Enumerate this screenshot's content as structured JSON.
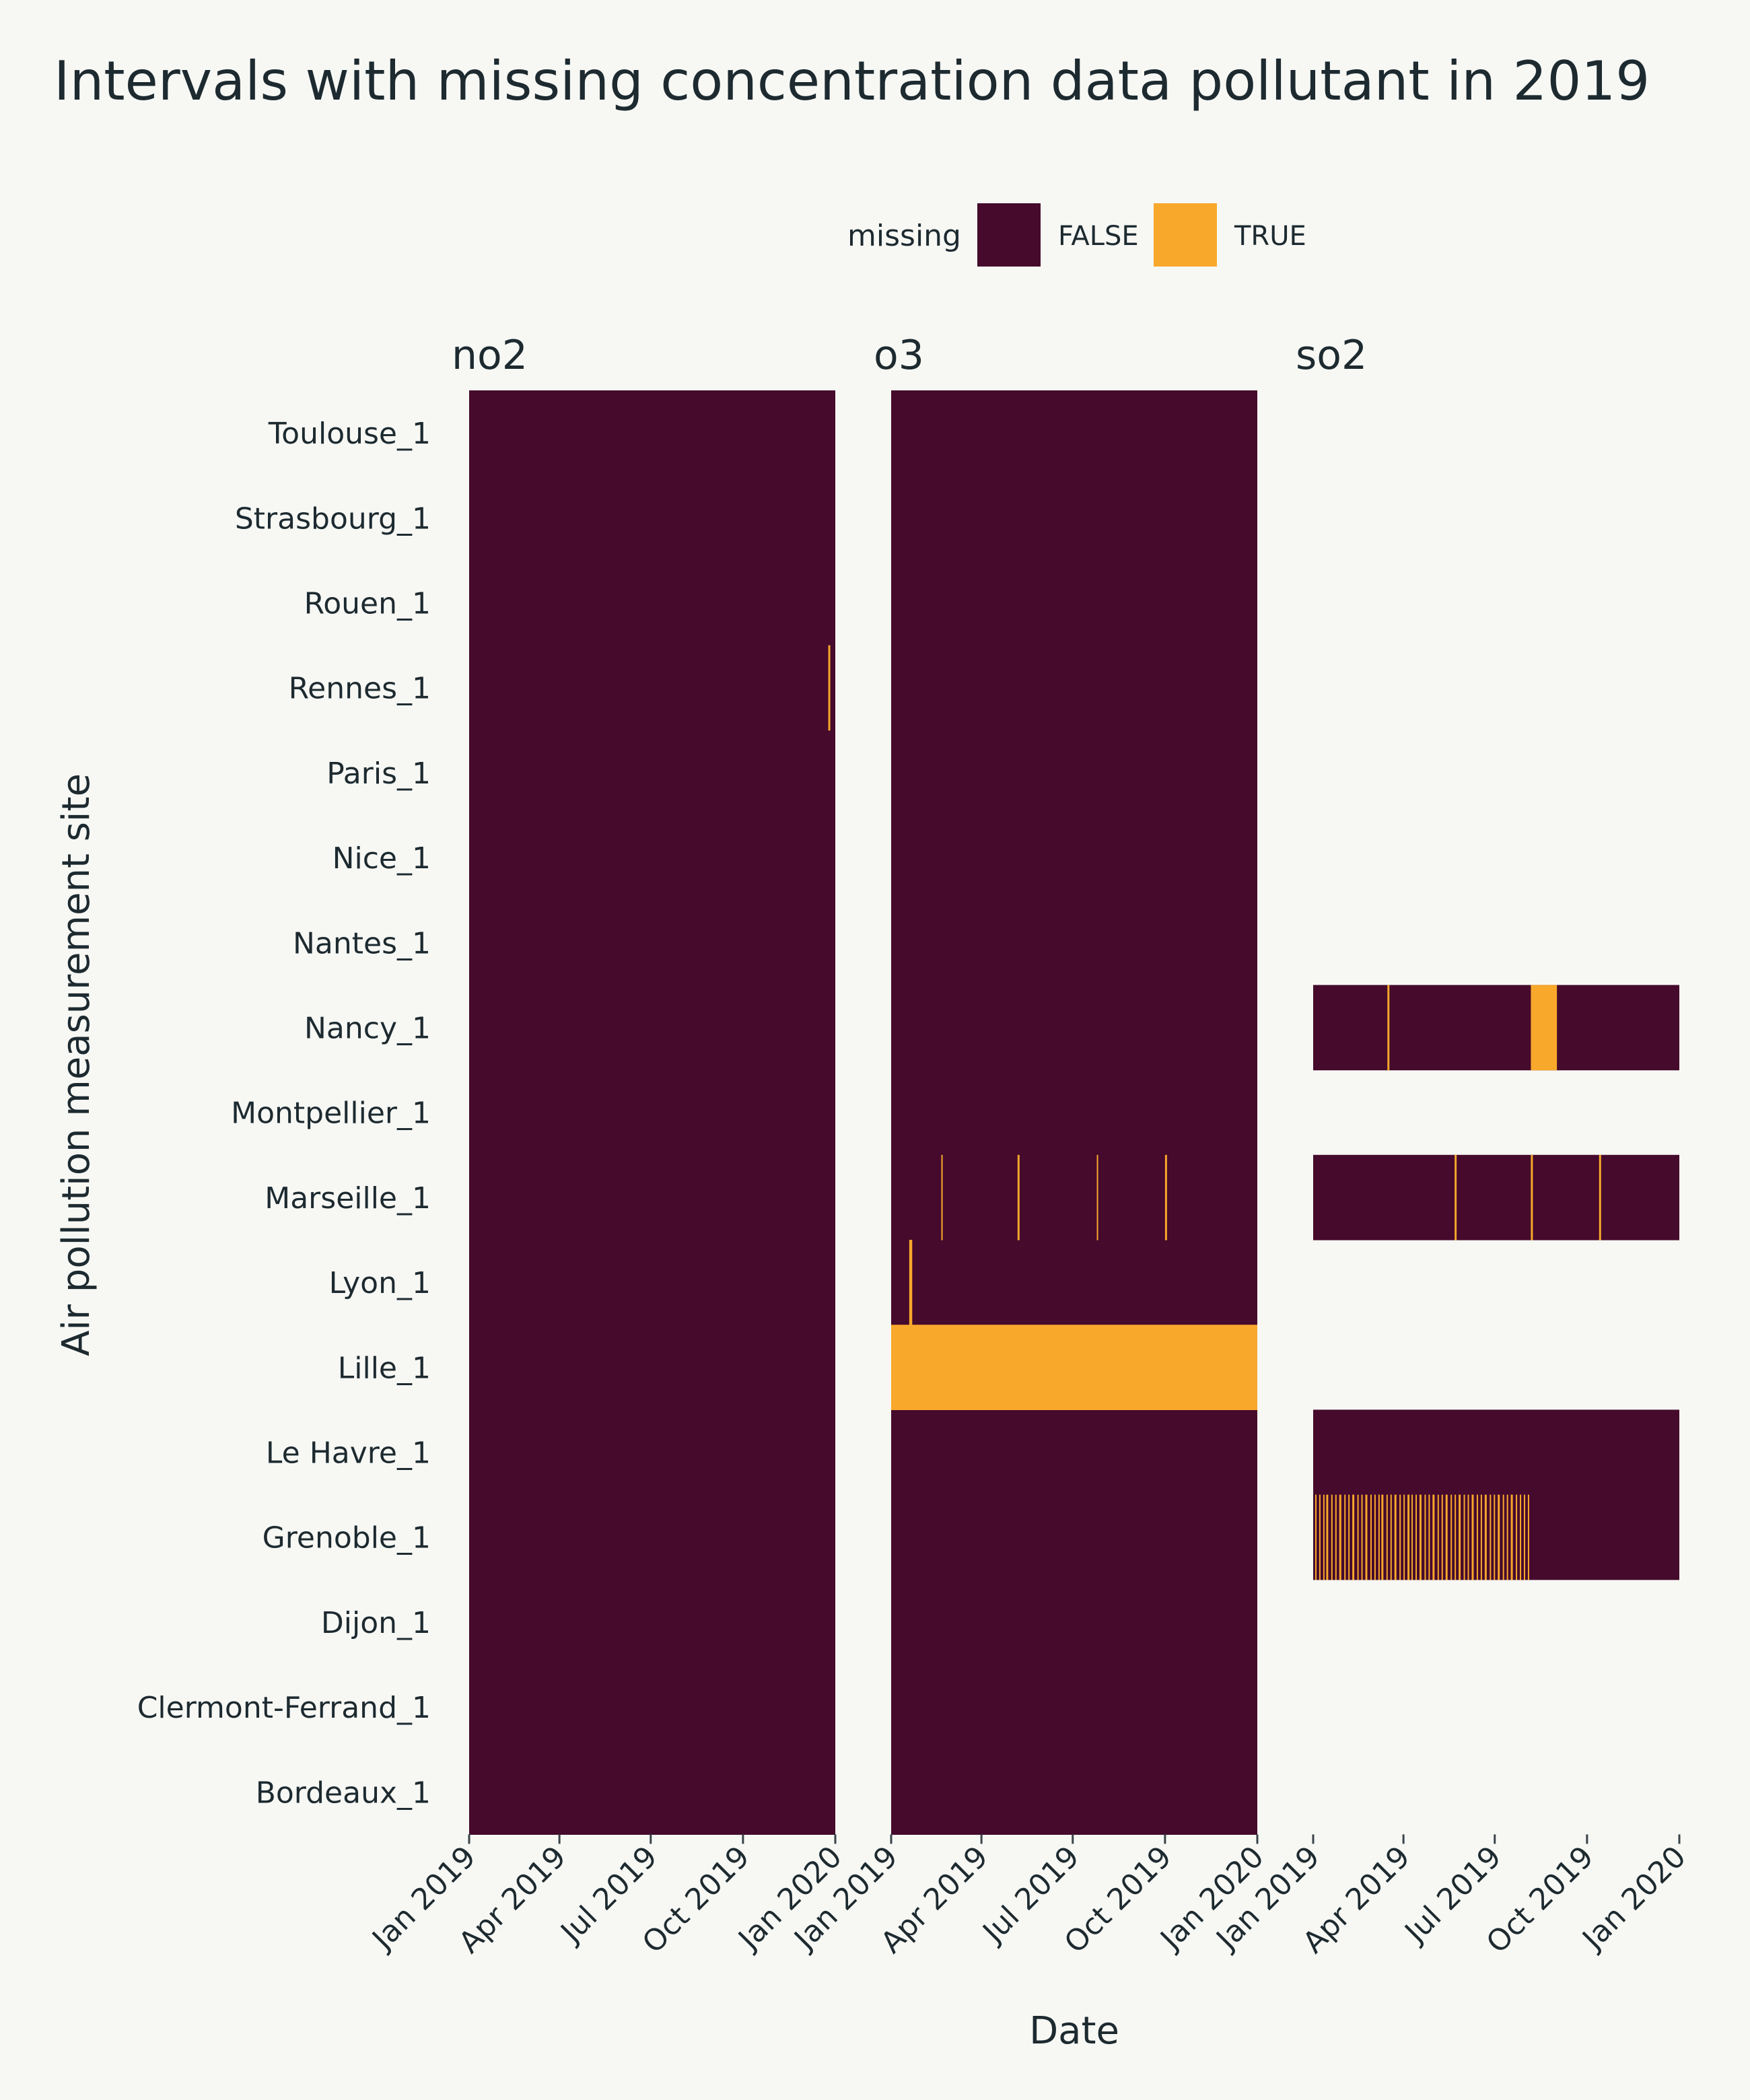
{
  "chart_data": {
    "type": "heatmap",
    "title": "Intervals with missing concentration data pollutant in 2019",
    "xlabel": "Date",
    "ylabel": "Air pollution measurement site",
    "legend": {
      "title": "missing",
      "position": "top",
      "entries": [
        {
          "label": "FALSE",
          "color": "#450a2c"
        },
        {
          "label": "TRUE",
          "color": "#f8a82b"
        }
      ]
    },
    "xlim": [
      "2019-01-01",
      "2020-01-01"
    ],
    "x_ticks": [
      "Jan 2019",
      "Apr 2019",
      "Jul 2019",
      "Oct 2019",
      "Jan 2020"
    ],
    "sites": [
      "Toulouse_1",
      "Strasbourg_1",
      "Rouen_1",
      "Rennes_1",
      "Paris_1",
      "Nice_1",
      "Nantes_1",
      "Nancy_1",
      "Montpellier_1",
      "Marseille_1",
      "Lyon_1",
      "Lille_1",
      "Le Havre_1",
      "Grenoble_1",
      "Dijon_1",
      "Clermont-Ferrand_1",
      "Bordeaux_1"
    ],
    "facets": [
      {
        "name": "no2",
        "sites_with_data": [
          "Toulouse_1",
          "Strasbourg_1",
          "Rouen_1",
          "Rennes_1",
          "Paris_1",
          "Nice_1",
          "Nantes_1",
          "Nancy_1",
          "Montpellier_1",
          "Marseille_1",
          "Lyon_1",
          "Lille_1",
          "Le Havre_1",
          "Grenoble_1",
          "Dijon_1",
          "Clermont-Ferrand_1",
          "Bordeaux_1"
        ],
        "missing_intervals": [
          {
            "site": "Rennes_1",
            "start": "2019-12-25",
            "end": "2019-12-27"
          }
        ]
      },
      {
        "name": "o3",
        "sites_with_data": [
          "Toulouse_1",
          "Strasbourg_1",
          "Rouen_1",
          "Rennes_1",
          "Paris_1",
          "Nice_1",
          "Nantes_1",
          "Nancy_1",
          "Montpellier_1",
          "Marseille_1",
          "Lyon_1",
          "Lille_1",
          "Le Havre_1",
          "Grenoble_1",
          "Dijon_1",
          "Clermont-Ferrand_1",
          "Bordeaux_1"
        ],
        "missing_intervals": [
          {
            "site": "Marseille_1",
            "start": "2019-02-20",
            "end": "2019-02-21"
          },
          {
            "site": "Marseille_1",
            "start": "2019-05-07",
            "end": "2019-05-09"
          },
          {
            "site": "Marseille_1",
            "start": "2019-07-25",
            "end": "2019-07-26"
          },
          {
            "site": "Marseille_1",
            "start": "2019-10-01",
            "end": "2019-10-03"
          },
          {
            "site": "Lyon_1",
            "start": "2019-01-19",
            "end": "2019-01-22"
          },
          {
            "site": "Lille_1",
            "start": "2019-01-01",
            "end": "2020-01-01"
          }
        ]
      },
      {
        "name": "so2",
        "sites_with_data": [
          "Nancy_1",
          "Marseille_1",
          "Le Havre_1",
          "Grenoble_1"
        ],
        "missing_intervals": [
          {
            "site": "Nancy_1",
            "start": "2019-03-16",
            "end": "2019-03-18"
          },
          {
            "site": "Nancy_1",
            "start": "2019-08-06",
            "end": "2019-09-01"
          },
          {
            "site": "Marseille_1",
            "start": "2019-05-22",
            "end": "2019-05-24"
          },
          {
            "site": "Marseille_1",
            "start": "2019-08-06",
            "end": "2019-08-08"
          },
          {
            "site": "Marseille_1",
            "start": "2019-10-13",
            "end": "2019-10-15"
          },
          {
            "site": "Grenoble_1",
            "start": "2019-01-03",
            "end": "2019-01-04"
          },
          {
            "site": "Grenoble_1",
            "start": "2019-01-07",
            "end": "2019-01-08"
          },
          {
            "site": "Grenoble_1",
            "start": "2019-01-11",
            "end": "2019-01-12"
          },
          {
            "site": "Grenoble_1",
            "start": "2019-01-14",
            "end": "2019-01-16"
          },
          {
            "site": "Grenoble_1",
            "start": "2019-01-19",
            "end": "2019-01-20"
          },
          {
            "site": "Grenoble_1",
            "start": "2019-01-23",
            "end": "2019-01-24"
          },
          {
            "site": "Grenoble_1",
            "start": "2019-01-27",
            "end": "2019-01-29"
          },
          {
            "site": "Grenoble_1",
            "start": "2019-02-01",
            "end": "2019-02-02"
          },
          {
            "site": "Grenoble_1",
            "start": "2019-02-05",
            "end": "2019-02-06"
          },
          {
            "site": "Grenoble_1",
            "start": "2019-02-09",
            "end": "2019-02-11"
          },
          {
            "site": "Grenoble_1",
            "start": "2019-02-14",
            "end": "2019-02-15"
          },
          {
            "site": "Grenoble_1",
            "start": "2019-02-18",
            "end": "2019-02-19"
          },
          {
            "site": "Grenoble_1",
            "start": "2019-02-22",
            "end": "2019-02-24"
          },
          {
            "site": "Grenoble_1",
            "start": "2019-02-27",
            "end": "2019-02-28"
          },
          {
            "site": "Grenoble_1",
            "start": "2019-03-03",
            "end": "2019-03-04"
          },
          {
            "site": "Grenoble_1",
            "start": "2019-03-07",
            "end": "2019-03-08"
          },
          {
            "site": "Grenoble_1",
            "start": "2019-03-10",
            "end": "2019-03-12"
          },
          {
            "site": "Grenoble_1",
            "start": "2019-03-15",
            "end": "2019-03-16"
          },
          {
            "site": "Grenoble_1",
            "start": "2019-03-19",
            "end": "2019-03-20"
          },
          {
            "site": "Grenoble_1",
            "start": "2019-03-23",
            "end": "2019-03-25"
          },
          {
            "site": "Grenoble_1",
            "start": "2019-03-28",
            "end": "2019-03-29"
          },
          {
            "site": "Grenoble_1",
            "start": "2019-04-01",
            "end": "2019-04-02"
          },
          {
            "site": "Grenoble_1",
            "start": "2019-04-05",
            "end": "2019-04-07"
          },
          {
            "site": "Grenoble_1",
            "start": "2019-04-09",
            "end": "2019-04-10"
          },
          {
            "site": "Grenoble_1",
            "start": "2019-04-13",
            "end": "2019-04-14"
          },
          {
            "site": "Grenoble_1",
            "start": "2019-04-17",
            "end": "2019-04-19"
          },
          {
            "site": "Grenoble_1",
            "start": "2019-04-22",
            "end": "2019-04-23"
          },
          {
            "site": "Grenoble_1",
            "start": "2019-04-26",
            "end": "2019-04-27"
          },
          {
            "site": "Grenoble_1",
            "start": "2019-04-30",
            "end": "2019-05-02"
          },
          {
            "site": "Grenoble_1",
            "start": "2019-05-05",
            "end": "2019-05-06"
          },
          {
            "site": "Grenoble_1",
            "start": "2019-05-09",
            "end": "2019-05-10"
          },
          {
            "site": "Grenoble_1",
            "start": "2019-05-13",
            "end": "2019-05-15"
          },
          {
            "site": "Grenoble_1",
            "start": "2019-05-18",
            "end": "2019-05-19"
          },
          {
            "site": "Grenoble_1",
            "start": "2019-05-22",
            "end": "2019-05-23"
          },
          {
            "site": "Grenoble_1",
            "start": "2019-05-26",
            "end": "2019-05-28"
          },
          {
            "site": "Grenoble_1",
            "start": "2019-05-31",
            "end": "2019-06-01"
          },
          {
            "site": "Grenoble_1",
            "start": "2019-06-04",
            "end": "2019-06-05"
          },
          {
            "site": "Grenoble_1",
            "start": "2019-06-08",
            "end": "2019-06-10"
          },
          {
            "site": "Grenoble_1",
            "start": "2019-06-13",
            "end": "2019-06-14"
          },
          {
            "site": "Grenoble_1",
            "start": "2019-06-17",
            "end": "2019-06-18"
          },
          {
            "site": "Grenoble_1",
            "start": "2019-06-21",
            "end": "2019-06-23"
          },
          {
            "site": "Grenoble_1",
            "start": "2019-06-26",
            "end": "2019-06-27"
          },
          {
            "site": "Grenoble_1",
            "start": "2019-06-30",
            "end": "2019-07-01"
          },
          {
            "site": "Grenoble_1",
            "start": "2019-07-04",
            "end": "2019-07-06"
          },
          {
            "site": "Grenoble_1",
            "start": "2019-07-09",
            "end": "2019-07-10"
          },
          {
            "site": "Grenoble_1",
            "start": "2019-07-13",
            "end": "2019-07-14"
          },
          {
            "site": "Grenoble_1",
            "start": "2019-07-17",
            "end": "2019-07-19"
          },
          {
            "site": "Grenoble_1",
            "start": "2019-07-22",
            "end": "2019-07-23"
          },
          {
            "site": "Grenoble_1",
            "start": "2019-07-26",
            "end": "2019-07-27"
          },
          {
            "site": "Grenoble_1",
            "start": "2019-07-30",
            "end": "2019-07-31"
          },
          {
            "site": "Grenoble_1",
            "start": "2019-08-03",
            "end": "2019-08-04"
          }
        ]
      }
    ],
    "grid": false
  }
}
